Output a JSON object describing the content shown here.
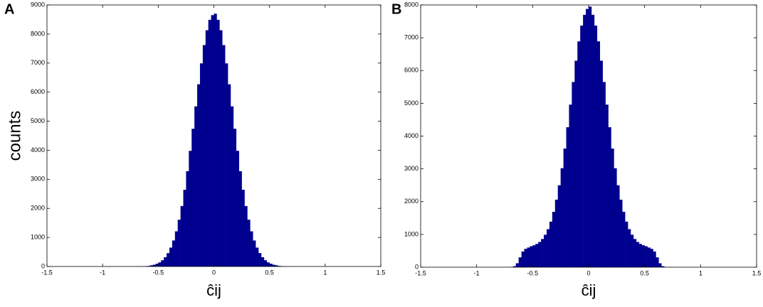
{
  "chart_data": [
    {
      "type": "histogram",
      "panel_label": "A",
      "xlabel": "ĉij",
      "ylabel": "counts",
      "color": "#00008f",
      "bins": [
        -0.75,
        -0.725,
        -0.7,
        -0.675,
        -0.65,
        -0.625,
        -0.6,
        -0.575,
        -0.55,
        -0.525,
        -0.5,
        -0.475,
        -0.45,
        -0.425,
        -0.4,
        -0.375,
        -0.35,
        -0.325,
        -0.3,
        -0.275,
        -0.25,
        -0.225,
        -0.2,
        -0.175,
        -0.15,
        -0.125,
        -0.1,
        -0.075,
        -0.05,
        -0.025,
        0,
        0.025,
        0.05,
        0.075,
        0.1,
        0.125,
        0.15,
        0.175,
        0.2,
        0.225,
        0.25,
        0.275,
        0.3,
        0.325,
        0.35,
        0.375,
        0.4,
        0.425,
        0.45,
        0.475,
        0.5,
        0.525,
        0.55,
        0.575,
        0.6,
        0.625,
        0.65,
        0.675,
        0.7,
        0.725,
        0.75
      ],
      "values": [
        1,
        1,
        2,
        4,
        7,
        12,
        20,
        40,
        60,
        95,
        140,
        215,
        320,
        460,
        650,
        895,
        1210,
        1610,
        2080,
        2640,
        3280,
        3980,
        4740,
        5510,
        6270,
        6990,
        7620,
        8130,
        8490,
        8650,
        8700,
        8490,
        8130,
        7620,
        6990,
        6270,
        5510,
        4740,
        3980,
        3280,
        2640,
        2080,
        1610,
        1210,
        895,
        650,
        460,
        320,
        215,
        140,
        95,
        60,
        40,
        20,
        12,
        7,
        4,
        2,
        1,
        1
      ],
      "xlim": [
        -1.5,
        1.5
      ],
      "xticks": [
        -1.5,
        -1,
        -0.5,
        0,
        0.5,
        1,
        1.5
      ],
      "ylim": [
        0,
        9000
      ],
      "yticks": [
        0,
        1000,
        2000,
        3000,
        4000,
        5000,
        6000,
        7000,
        8000,
        9000
      ]
    },
    {
      "type": "histogram",
      "panel_label": "B",
      "xlabel": "ĉij",
      "color": "#00008f",
      "bins": [
        -0.75,
        -0.725,
        -0.7,
        -0.675,
        -0.65,
        -0.625,
        -0.6,
        -0.575,
        -0.55,
        -0.525,
        -0.5,
        -0.475,
        -0.45,
        -0.425,
        -0.4,
        -0.375,
        -0.35,
        -0.325,
        -0.3,
        -0.275,
        -0.25,
        -0.225,
        -0.2,
        -0.175,
        -0.15,
        -0.125,
        -0.1,
        -0.075,
        -0.05,
        -0.025,
        0,
        0.025,
        0.05,
        0.075,
        0.1,
        0.125,
        0.15,
        0.175,
        0.2,
        0.225,
        0.25,
        0.275,
        0.3,
        0.325,
        0.35,
        0.375,
        0.4,
        0.425,
        0.45,
        0.475,
        0.5,
        0.525,
        0.55,
        0.575,
        0.6,
        0.625,
        0.65,
        0.675,
        0.7,
        0.725,
        0.75
      ],
      "values": [
        1,
        3,
        8,
        30,
        120,
        300,
        480,
        560,
        600,
        640,
        670,
        710,
        770,
        860,
        990,
        1160,
        1390,
        1690,
        2060,
        2500,
        3020,
        3620,
        4270,
        4960,
        5650,
        6300,
        6890,
        7370,
        7700,
        7880,
        7950,
        7700,
        7370,
        6890,
        6300,
        5650,
        4960,
        4270,
        3620,
        3020,
        2500,
        2060,
        1690,
        1390,
        1160,
        990,
        860,
        770,
        710,
        670,
        640,
        600,
        560,
        480,
        300,
        120,
        30,
        8,
        3,
        1
      ],
      "xlim": [
        -1.5,
        1.5
      ],
      "xticks": [
        -1.5,
        -1,
        -0.5,
        0,
        0.5,
        1,
        1.5
      ],
      "ylim": [
        0,
        8000
      ],
      "yticks": [
        0,
        1000,
        2000,
        3000,
        4000,
        5000,
        6000,
        7000,
        8000
      ]
    }
  ]
}
